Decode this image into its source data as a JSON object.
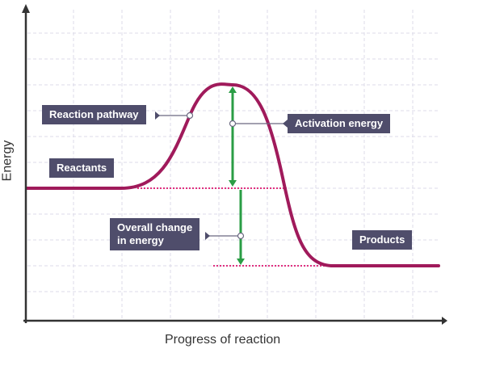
{
  "chart_data": {
    "type": "line",
    "title": "",
    "xlabel": "Progress of reaction",
    "ylabel": "Energy",
    "xlim": [
      0,
      10
    ],
    "ylim": [
      0,
      12
    ],
    "grid": true,
    "series": [
      {
        "name": "Reaction pathway",
        "points": [
          [
            0,
            5
          ],
          [
            2,
            5
          ],
          [
            3,
            7
          ],
          [
            4,
            9
          ],
          [
            5,
            9.2
          ],
          [
            6,
            6
          ],
          [
            6.5,
            3
          ],
          [
            7,
            2.1
          ],
          [
            8,
            2
          ],
          [
            10,
            2
          ]
        ]
      }
    ],
    "reactant_level": 5,
    "product_level": 2,
    "peak_level": 9.2,
    "annotations": [
      {
        "id": "reaction_pathway",
        "text": "Reaction pathway"
      },
      {
        "id": "activation_energy",
        "text": "Activation energy"
      },
      {
        "id": "reactants",
        "text": "Reactants"
      },
      {
        "id": "overall_change",
        "text": "Overall change\nin energy"
      },
      {
        "id": "products",
        "text": "Products"
      }
    ]
  },
  "colors": {
    "curve": "#a01a5b",
    "arrow": "#2a9d45",
    "dotted": "#e0307e",
    "label_bg": "#4f4d6b",
    "axis": "#333333",
    "grid": "#dcdbe8"
  }
}
